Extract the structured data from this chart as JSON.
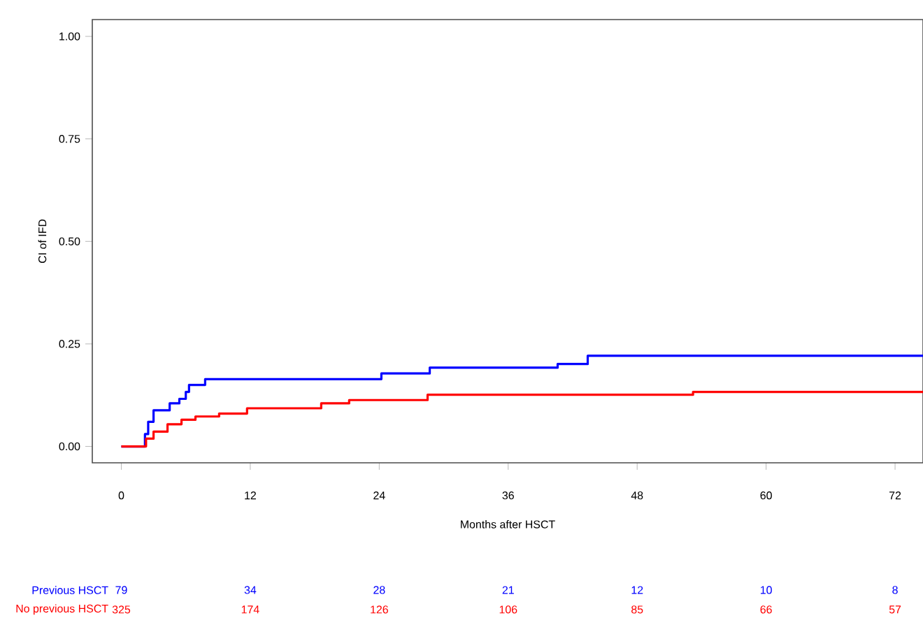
{
  "chart_data": {
    "type": "step",
    "xlabel": "Months after HSCT",
    "ylabel": "CI of IFD",
    "xlim": [
      -2.7,
      74.6
    ],
    "ylim": [
      -0.04,
      1.041
    ],
    "xticks": [
      0,
      12,
      24,
      36,
      48,
      60,
      72
    ],
    "yticks": [
      {
        "value": 0,
        "label": "0.00"
      },
      {
        "value": 0.25,
        "label": "0.25"
      },
      {
        "value": 0.5,
        "label": "0.50"
      },
      {
        "value": 0.75,
        "label": "0.75"
      },
      {
        "value": 1,
        "label": "1.00"
      }
    ],
    "grid": false,
    "legend": false,
    "series": [
      {
        "name": "Previous HSCT",
        "color": "#0000ff",
        "x": [
          0,
          1.9,
          2.2,
          2.5,
          3.0,
          4.5,
          5.4,
          6.0,
          6.3,
          7.8,
          24.2,
          28.7,
          40.6,
          43.4,
          74.6
        ],
        "values": [
          0,
          0,
          0.03,
          0.06,
          0.088,
          0.105,
          0.116,
          0.133,
          0.15,
          0.164,
          0.178,
          0.192,
          0.201,
          0.221,
          0.221
        ]
      },
      {
        "name": "No previous HSCT",
        "color": "#ff0000",
        "x": [
          0,
          1.9,
          2.3,
          3.0,
          4.3,
          5.6,
          6.9,
          9.1,
          11.7,
          18.6,
          21.2,
          28.5,
          53.2,
          74.6
        ],
        "values": [
          0,
          0,
          0.019,
          0.036,
          0.054,
          0.065,
          0.073,
          0.08,
          0.093,
          0.105,
          0.113,
          0.126,
          0.133,
          0.133
        ]
      }
    ],
    "annotations": [
      "79",
      "34",
      "28",
      "21",
      "12",
      "10",
      "8",
      "325",
      "174",
      "126",
      "106",
      "85",
      "66",
      "57"
    ]
  }
}
